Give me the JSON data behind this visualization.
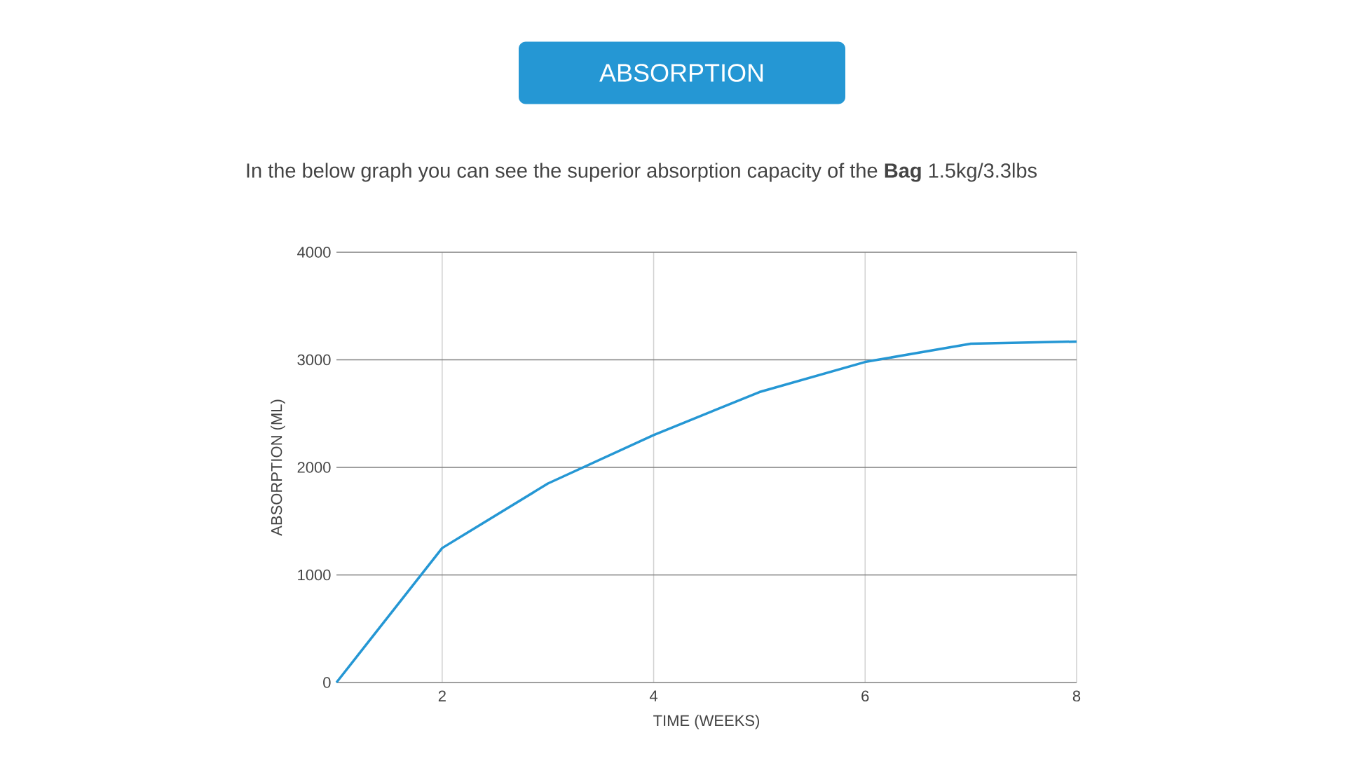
{
  "chart_data": {
    "type": "line",
    "title": "ABSORPTION",
    "subtitle": "In the below graph you can see the superior absorption capacity of the **Bag** 1.5kg/3.3lbs",
    "xlabel": "TIME (WEEKS)",
    "ylabel": "ABSORPTION (ML)",
    "x": [
      1,
      2,
      3,
      4,
      5,
      6,
      7,
      8
    ],
    "series": [
      {
        "color": "#2597d4",
        "values": [
          0,
          1250,
          1850,
          2300,
          2700,
          2980,
          3150,
          3170
        ]
      }
    ],
    "xlim": [
      1,
      8
    ],
    "xticks": [
      2,
      4,
      6,
      8
    ],
    "ylim": [
      0,
      4000
    ],
    "yticks": [
      0,
      1000,
      2000,
      3000,
      4000
    ],
    "grid": true,
    "marker": "none",
    "line_style": "solid"
  }
}
